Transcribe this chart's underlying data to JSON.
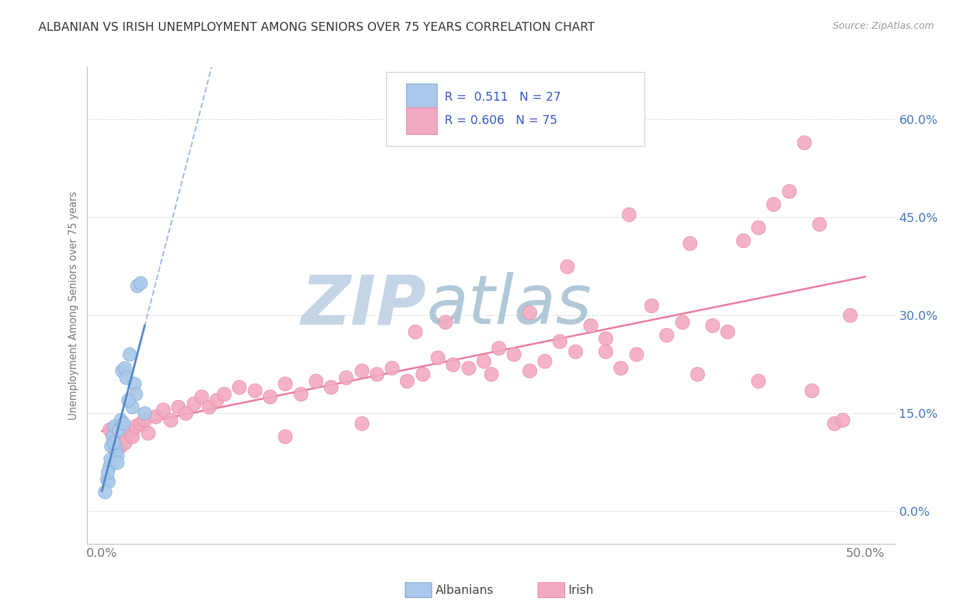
{
  "title": "ALBANIAN VS IRISH UNEMPLOYMENT AMONG SENIORS OVER 75 YEARS CORRELATION CHART",
  "source": "Source: ZipAtlas.com",
  "ylabel": "Unemployment Among Seniors over 75 years",
  "ytick_vals": [
    0.0,
    15.0,
    30.0,
    45.0,
    60.0
  ],
  "ytick_labels": [
    "0.0%",
    "15.0%",
    "30.0%",
    "45.0%",
    "60.0%"
  ],
  "xtick_vals": [
    0.0,
    50.0
  ],
  "xtick_labels": [
    "0.0%",
    "50.0%"
  ],
  "xlim": [
    -1.0,
    52.0
  ],
  "ylim": [
    -5.0,
    68.0
  ],
  "albanian_R": "0.511",
  "albanian_N": "27",
  "irish_R": "0.606",
  "irish_N": "75",
  "albanian_scatter_color": "#aac8ea",
  "albanian_edge_color": "#80aad4",
  "irish_scatter_color": "#f2aac0",
  "irish_edge_color": "#e88aa8",
  "albanian_trend_color": "#5588cc",
  "irish_trend_color": "#e87898",
  "grid_color": "#dddddd",
  "axis_color": "#bbbbbb",
  "title_color": "#333333",
  "source_color": "#999999",
  "ylabel_color": "#777777",
  "xtick_color": "#777777",
  "ytick_color": "#4477bb",
  "legend_text_color": "#3355cc",
  "legend_border_color": "#cccccc",
  "watermark_zip_color": "#c5d5e8",
  "watermark_atlas_color": "#b0c8d8",
  "albanian_x": [
    0.3,
    0.4,
    0.5,
    0.6,
    0.7,
    0.8,
    0.9,
    1.0,
    1.1,
    1.2,
    1.3,
    1.5,
    1.6,
    1.8,
    2.0,
    2.1,
    2.2,
    2.3,
    2.5,
    0.2,
    0.35,
    0.55,
    0.75,
    1.0,
    1.4,
    1.7,
    2.8
  ],
  "albanian_y": [
    5.0,
    4.5,
    7.0,
    10.0,
    11.5,
    13.0,
    9.5,
    8.5,
    12.5,
    14.0,
    21.5,
    22.0,
    20.5,
    24.0,
    16.0,
    19.5,
    18.0,
    34.5,
    35.0,
    3.0,
    6.0,
    8.0,
    10.5,
    7.5,
    13.5,
    17.0,
    15.0
  ],
  "irish_x": [
    0.5,
    0.8,
    1.0,
    1.2,
    1.5,
    1.8,
    2.0,
    2.2,
    2.5,
    2.8,
    3.0,
    3.5,
    4.0,
    4.5,
    5.0,
    5.5,
    6.0,
    6.5,
    7.0,
    7.5,
    8.0,
    9.0,
    10.0,
    11.0,
    12.0,
    13.0,
    14.0,
    15.0,
    16.0,
    17.0,
    18.0,
    19.0,
    20.0,
    21.0,
    22.0,
    23.0,
    24.0,
    25.0,
    26.0,
    27.0,
    28.0,
    29.0,
    30.0,
    31.0,
    32.0,
    33.0,
    34.0,
    35.0,
    36.0,
    37.0,
    38.0,
    39.0,
    40.0,
    41.0,
    42.0,
    43.0,
    44.0,
    45.0,
    46.0,
    47.0,
    48.0,
    49.0,
    30.5,
    34.5,
    38.5,
    43.0,
    46.5,
    48.5,
    20.5,
    25.5,
    33.0,
    28.0,
    22.5,
    17.0,
    12.0
  ],
  "irish_y": [
    12.5,
    11.0,
    9.5,
    10.0,
    10.5,
    12.0,
    11.5,
    13.0,
    13.5,
    14.0,
    12.0,
    14.5,
    15.5,
    14.0,
    16.0,
    15.0,
    16.5,
    17.5,
    16.0,
    17.0,
    18.0,
    19.0,
    18.5,
    17.5,
    19.5,
    18.0,
    20.0,
    19.0,
    20.5,
    21.5,
    21.0,
    22.0,
    20.0,
    21.0,
    23.5,
    22.5,
    22.0,
    23.0,
    25.0,
    24.0,
    21.5,
    23.0,
    26.0,
    24.5,
    28.5,
    26.5,
    22.0,
    24.0,
    31.5,
    27.0,
    29.0,
    21.0,
    28.5,
    27.5,
    41.5,
    43.5,
    47.0,
    49.0,
    56.5,
    44.0,
    13.5,
    30.0,
    37.5,
    45.5,
    41.0,
    20.0,
    18.5,
    14.0,
    27.5,
    21.0,
    24.5,
    30.5,
    29.0,
    13.5,
    11.5
  ]
}
